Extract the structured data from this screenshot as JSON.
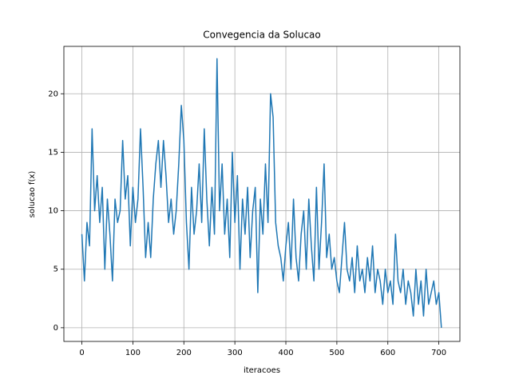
{
  "chart_data": {
    "type": "line",
    "title": "Convegencia da Solucao",
    "xlabel": "iteracoes",
    "ylabel": "solucao f(x)",
    "x": [
      0,
      5,
      10,
      15,
      20,
      25,
      30,
      35,
      40,
      45,
      50,
      55,
      60,
      65,
      70,
      75,
      80,
      85,
      90,
      95,
      100,
      105,
      110,
      115,
      120,
      125,
      130,
      135,
      140,
      145,
      150,
      155,
      160,
      165,
      170,
      175,
      180,
      185,
      190,
      195,
      200,
      205,
      210,
      215,
      220,
      225,
      230,
      235,
      240,
      245,
      250,
      255,
      260,
      265,
      270,
      275,
      280,
      285,
      290,
      295,
      300,
      305,
      310,
      315,
      320,
      325,
      330,
      335,
      340,
      345,
      350,
      355,
      360,
      365,
      370,
      375,
      380,
      385,
      390,
      395,
      400,
      405,
      410,
      415,
      420,
      425,
      430,
      435,
      440,
      445,
      450,
      455,
      460,
      465,
      470,
      475,
      480,
      485,
      490,
      495,
      500,
      505,
      510,
      515,
      520,
      525,
      530,
      535,
      540,
      545,
      550,
      555,
      560,
      565,
      570,
      575,
      580,
      585,
      590,
      595,
      600,
      605,
      610,
      615,
      620,
      625,
      630,
      635,
      640,
      645,
      650,
      655,
      660,
      665,
      670,
      675,
      680,
      685,
      690,
      695,
      700,
      705
    ],
    "values": [
      8,
      4,
      9,
      7,
      17,
      10,
      13,
      9,
      12,
      5,
      11,
      8,
      4,
      11,
      9,
      10,
      16,
      11,
      13,
      7,
      12,
      9,
      11,
      17,
      12,
      6,
      9,
      6,
      11,
      14,
      16,
      12,
      16,
      13,
      9,
      11,
      8,
      10,
      14,
      19,
      16,
      9,
      5,
      12,
      8,
      10,
      14,
      9,
      17,
      11,
      7,
      12,
      8,
      23,
      10,
      14,
      8,
      11,
      6,
      15,
      9,
      13,
      5,
      11,
      8,
      12,
      6,
      10,
      12,
      3,
      11,
      8,
      14,
      9,
      20,
      18,
      9,
      7,
      6,
      4,
      7,
      9,
      5,
      11,
      6,
      4,
      8,
      10,
      5,
      11,
      7,
      4,
      12,
      5,
      9,
      14,
      6,
      8,
      5,
      6,
      4,
      3,
      6,
      9,
      5,
      4,
      6,
      3,
      7,
      4,
      5,
      3,
      6,
      4,
      7,
      3,
      5,
      4,
      2,
      5,
      3,
      4,
      2,
      8,
      4,
      3,
      5,
      2,
      4,
      3,
      1,
      5,
      2,
      4,
      1,
      5,
      2,
      3,
      4,
      2,
      3,
      0
    ],
    "color": "#1f77b4",
    "xlim": [
      -35.3,
      741.3
    ],
    "ylim": [
      -1.17,
      24.05
    ],
    "xticks": [
      0,
      100,
      200,
      300,
      400,
      500,
      600,
      700
    ],
    "yticks": [
      0,
      5,
      10,
      15,
      20
    ],
    "grid": true
  }
}
